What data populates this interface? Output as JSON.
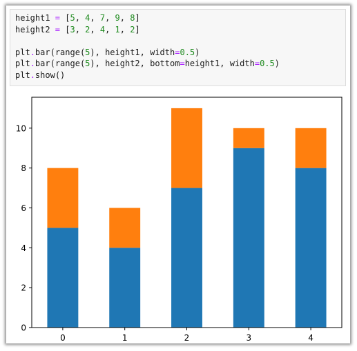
{
  "code_lines": [
    [
      {
        "t": "height1 "
      },
      {
        "t": "=",
        "c": "op"
      },
      {
        "t": " ["
      },
      {
        "t": "5",
        "c": "num"
      },
      {
        "t": ", "
      },
      {
        "t": "4",
        "c": "num"
      },
      {
        "t": ", "
      },
      {
        "t": "7",
        "c": "num"
      },
      {
        "t": ", "
      },
      {
        "t": "9",
        "c": "num"
      },
      {
        "t": ", "
      },
      {
        "t": "8",
        "c": "num"
      },
      {
        "t": "]"
      }
    ],
    [
      {
        "t": "height2 "
      },
      {
        "t": "=",
        "c": "op"
      },
      {
        "t": " ["
      },
      {
        "t": "3",
        "c": "num"
      },
      {
        "t": ", "
      },
      {
        "t": "2",
        "c": "num"
      },
      {
        "t": ", "
      },
      {
        "t": "4",
        "c": "num"
      },
      {
        "t": ", "
      },
      {
        "t": "1",
        "c": "num"
      },
      {
        "t": ", "
      },
      {
        "t": "2",
        "c": "num"
      },
      {
        "t": "]"
      }
    ],
    [],
    [
      {
        "t": "plt"
      },
      {
        "t": ".",
        "c": "op"
      },
      {
        "t": "bar(range("
      },
      {
        "t": "5",
        "c": "num"
      },
      {
        "t": "), height1, width"
      },
      {
        "t": "=",
        "c": "op"
      },
      {
        "t": "0.5",
        "c": "num"
      },
      {
        "t": ")"
      }
    ],
    [
      {
        "t": "plt"
      },
      {
        "t": ".",
        "c": "op"
      },
      {
        "t": "bar(range("
      },
      {
        "t": "5",
        "c": "num"
      },
      {
        "t": "), height2, bottom"
      },
      {
        "t": "=",
        "c": "op"
      },
      {
        "t": "height1, width"
      },
      {
        "t": "=",
        "c": "op"
      },
      {
        "t": "0.5",
        "c": "num"
      },
      {
        "t": ")"
      }
    ],
    [
      {
        "t": "plt"
      },
      {
        "t": ".",
        "c": "op"
      },
      {
        "t": "show()"
      }
    ]
  ],
  "chart_data": {
    "type": "bar",
    "stacked": true,
    "categories": [
      "0",
      "1",
      "2",
      "3",
      "4"
    ],
    "series": [
      {
        "values": [
          5,
          4,
          7,
          9,
          8
        ],
        "color": "#1f77b4"
      },
      {
        "values": [
          3,
          2,
          4,
          1,
          2
        ],
        "color": "#ff7f0e"
      }
    ],
    "bar_width": 0.5,
    "xlim": [
      -0.5,
      4.5
    ],
    "ylim": [
      0,
      11.55
    ],
    "yticks": [
      0,
      2,
      4,
      6,
      8,
      10
    ],
    "xticks": [
      0,
      1,
      2,
      3,
      4
    ],
    "title": "",
    "xlabel": "",
    "ylabel": "",
    "grid": false
  }
}
